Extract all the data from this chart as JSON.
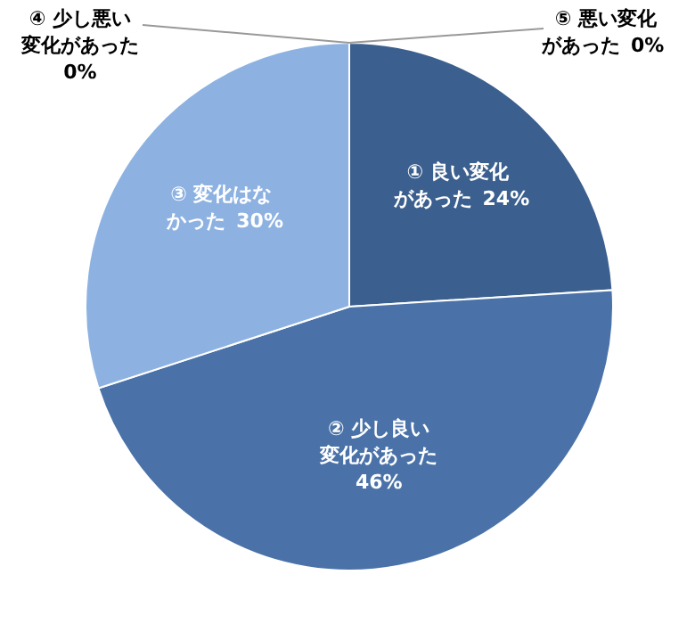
{
  "chart_data": {
    "type": "pie",
    "categories": [
      "① 良い変化があった",
      "② 少し良い変化があった",
      "③ 変化はなかった",
      "④ 少し悪い変化があった",
      "⑤ 悪い変化があった"
    ],
    "values": [
      24,
      46,
      30,
      0,
      0
    ],
    "value_labels": [
      "24%",
      "46%",
      "30%",
      "0%",
      "0%"
    ],
    "colors": [
      "#3b5f8e",
      "#4a72a8",
      "#8db2e2",
      null,
      null
    ]
  }
}
